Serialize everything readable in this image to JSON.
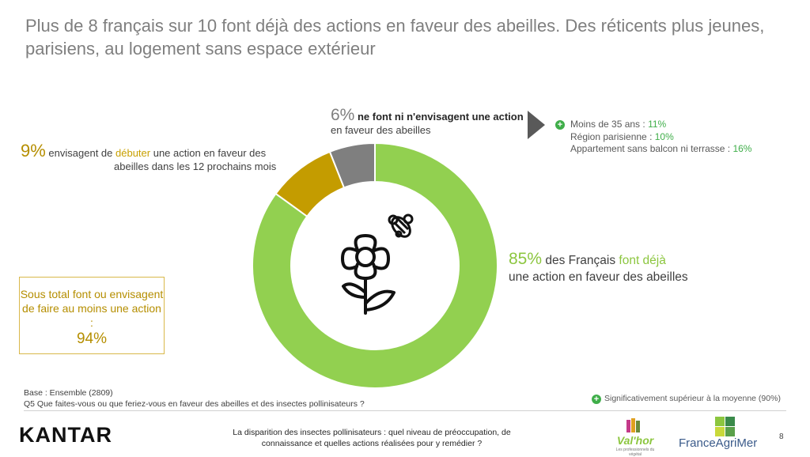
{
  "title": "Plus de 8 français sur 10 font déjà des actions en faveur des abeilles. Des réticents plus jeunes, parisiens, au logement sans espace extérieur",
  "chart_data": {
    "type": "pie",
    "categories": [
      "font déjà une action en faveur des abeilles",
      "envisagent de débuter une action en faveur des abeilles dans les 12 prochains mois",
      "ne font ni n'envisagent une action en faveur des abeilles"
    ],
    "values": [
      85,
      9,
      6
    ],
    "colors": [
      "#92d050",
      "#c49c00",
      "#7f7f7f"
    ]
  },
  "labels": {
    "none_pct": "6%",
    "none_bold": "ne font ni n'envisagent une action",
    "none_rest": "en faveur des abeilles",
    "plan_pct": "9%",
    "plan_pre": "envisagent de",
    "plan_hl": "débuter",
    "plan_rest1": "une action en faveur des",
    "plan_rest2": "abeilles dans les 12 prochains mois",
    "main_pct": "85%",
    "main_pre": "des Français",
    "main_hl": "font déjà",
    "main_rest": "une action en faveur des abeilles"
  },
  "subgroups": [
    {
      "label": "Moins de 35 ans :",
      "value": "11%"
    },
    {
      "label": "Région parisienne :",
      "value": "10%"
    },
    {
      "label": "Appartement sans balcon ni terrasse :",
      "value": "16%"
    }
  ],
  "subtotal_box": {
    "text": "Sous total font ou envisagent de faire au moins une action :",
    "value": "94%"
  },
  "base_note": "Base : Ensemble (2809)",
  "question": "Q5 Que faites-vous ou que feriez-vous en faveur des abeilles et des insectes pollinisateurs ?",
  "significance": "Significativement supérieur à la moyenne (90%)",
  "footer": {
    "logo": "KANTAR",
    "center": "La disparition des insectes pollinisateurs : quel niveau de préoccupation, de connaissance et quelles actions réalisées pour y remédier ?",
    "partner1": "Val'hor",
    "partner1_tagline": "Les professionnels du végétal",
    "partner2": "FranceAgriMer",
    "page": "8"
  },
  "colors": {
    "positive": "#3fae49",
    "gold": "#c49c00",
    "green": "#92d050"
  }
}
